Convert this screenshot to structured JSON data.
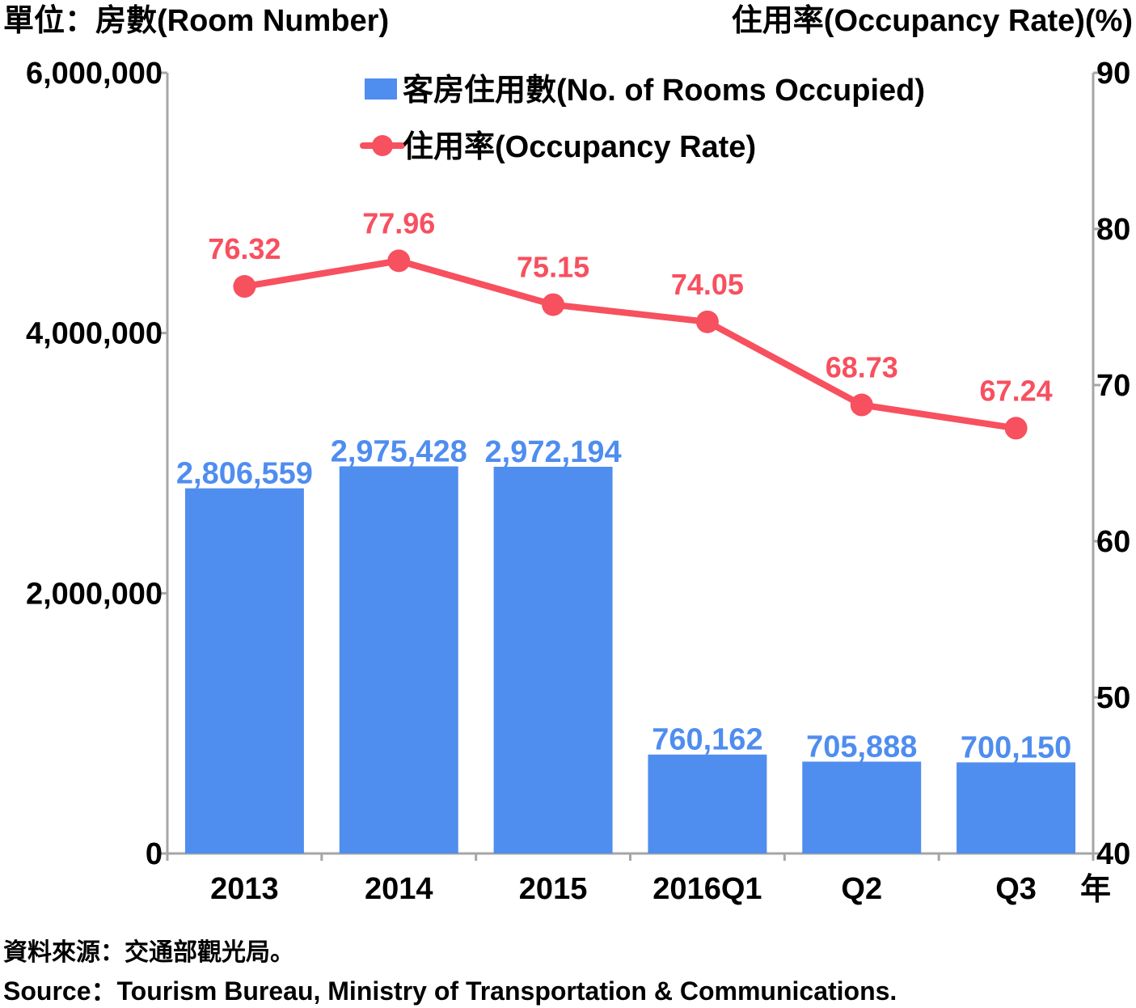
{
  "chart_data": {
    "type": "bar",
    "left_unit_label": "單位：房數(Room Number)",
    "right_unit_label": "住用率(Occupancy Rate)(%)",
    "x_unit_label": "年",
    "categories": [
      "2013",
      "2014",
      "2015",
      "2016Q1",
      "Q2",
      "Q3"
    ],
    "series": [
      {
        "name": "客房住用數(No. of Rooms Occupied)",
        "type": "bar",
        "axis": "left",
        "values": [
          2806559,
          2975428,
          2972194,
          760162,
          705888,
          700150
        ],
        "labels": [
          "2,806,559",
          "2,975,428",
          "2,972,194",
          "760,162",
          "705,888",
          "700,150"
        ],
        "color": "#4f8def"
      },
      {
        "name": "住用率(Occupancy Rate)",
        "type": "line",
        "axis": "right",
        "values": [
          76.32,
          77.96,
          75.15,
          74.05,
          68.73,
          67.24
        ],
        "labels": [
          "76.32",
          "77.96",
          "75.15",
          "74.05",
          "68.73",
          "67.24"
        ],
        "color": "#f7505f"
      }
    ],
    "y_left": {
      "range": [
        0,
        6000000
      ],
      "ticks": [
        0,
        2000000,
        4000000,
        6000000
      ],
      "tick_labels": [
        "0",
        "2,000,000",
        "4,000,000",
        "6,000,000"
      ]
    },
    "y_right": {
      "range": [
        40,
        90
      ],
      "ticks": [
        40,
        50,
        60,
        70,
        80,
        90
      ],
      "tick_labels": [
        "40",
        "50",
        "60",
        "70",
        "80",
        "90"
      ]
    },
    "grid": false,
    "legend_position": "top-center"
  },
  "source": {
    "zh": "資料來源：交通部觀光局。",
    "en": "Source：Tourism Bureau, Ministry of Transportation & Communications."
  }
}
